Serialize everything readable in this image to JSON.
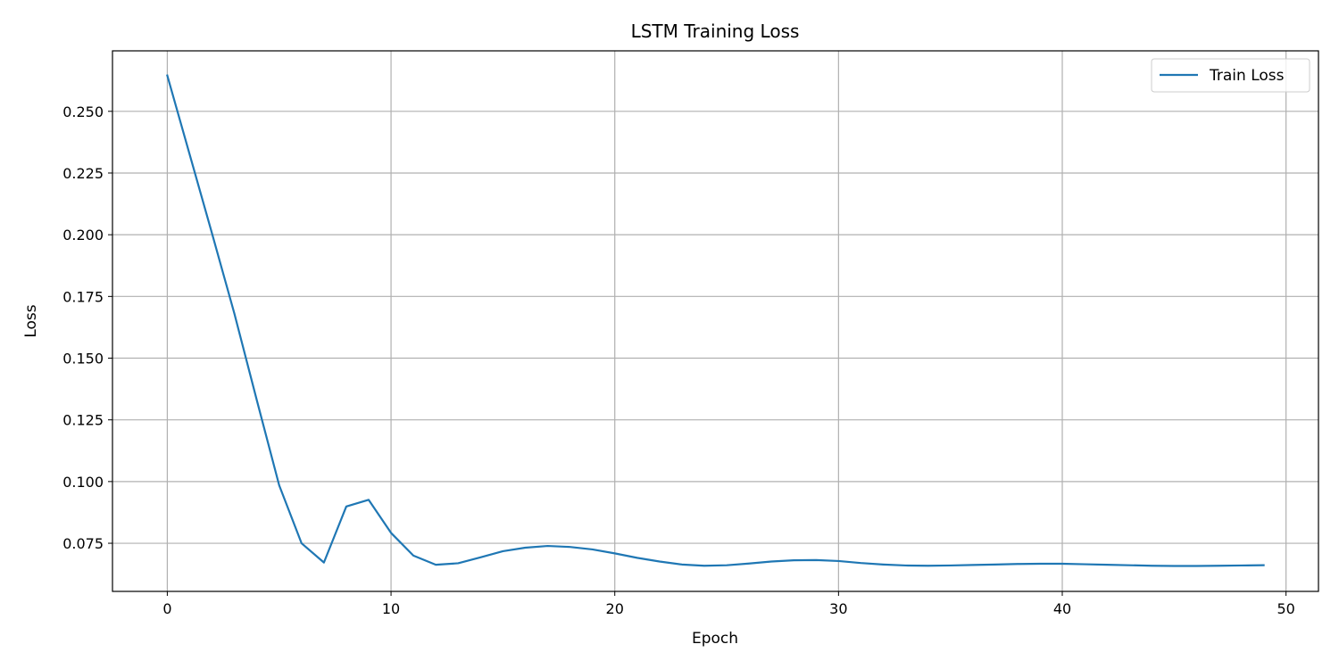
{
  "chart_data": {
    "type": "line",
    "title": "LSTM Training Loss",
    "xlabel": "Epoch",
    "ylabel": "Loss",
    "xlim": [
      -2.45,
      51.45
    ],
    "ylim": [
      0.0555,
      0.2745
    ],
    "xticks": [
      0,
      10,
      20,
      30,
      40,
      50
    ],
    "xtick_labels": [
      "0",
      "10",
      "20",
      "30",
      "40",
      "50"
    ],
    "yticks": [
      0.075,
      0.1,
      0.125,
      0.15,
      0.175,
      0.2,
      0.225,
      0.25
    ],
    "ytick_labels": [
      "0.075",
      "0.100",
      "0.125",
      "0.150",
      "0.175",
      "0.200",
      "0.225",
      "0.250"
    ],
    "grid": true,
    "legend_position": "top-right",
    "colors": {
      "series": "#1f77b4",
      "grid": "#b0b0b0",
      "axes": "#000000"
    },
    "series": [
      {
        "name": "Train Loss",
        "x": [
          0,
          1,
          2,
          3,
          4,
          5,
          6,
          7,
          8,
          9,
          10,
          11,
          12,
          13,
          14,
          15,
          16,
          17,
          18,
          19,
          20,
          21,
          22,
          23,
          24,
          25,
          26,
          27,
          28,
          29,
          30,
          31,
          32,
          33,
          34,
          35,
          36,
          37,
          38,
          39,
          40,
          41,
          42,
          43,
          44,
          45,
          46,
          47,
          48,
          49
        ],
        "values": [
          0.2645,
          0.2325,
          0.2005,
          0.168,
          0.133,
          0.0985,
          0.075,
          0.0672,
          0.0899,
          0.0926,
          0.0792,
          0.07,
          0.0663,
          0.0669,
          0.0693,
          0.0718,
          0.0732,
          0.0739,
          0.0735,
          0.0725,
          0.0709,
          0.0691,
          0.0676,
          0.0664,
          0.0659,
          0.0661,
          0.0668,
          0.0676,
          0.0681,
          0.0682,
          0.0678,
          0.067,
          0.0664,
          0.066,
          0.0659,
          0.066,
          0.0662,
          0.0664,
          0.0666,
          0.0667,
          0.0667,
          0.0665,
          0.0663,
          0.0661,
          0.0659,
          0.0658,
          0.0658,
          0.0659,
          0.066,
          0.0661
        ]
      }
    ]
  }
}
